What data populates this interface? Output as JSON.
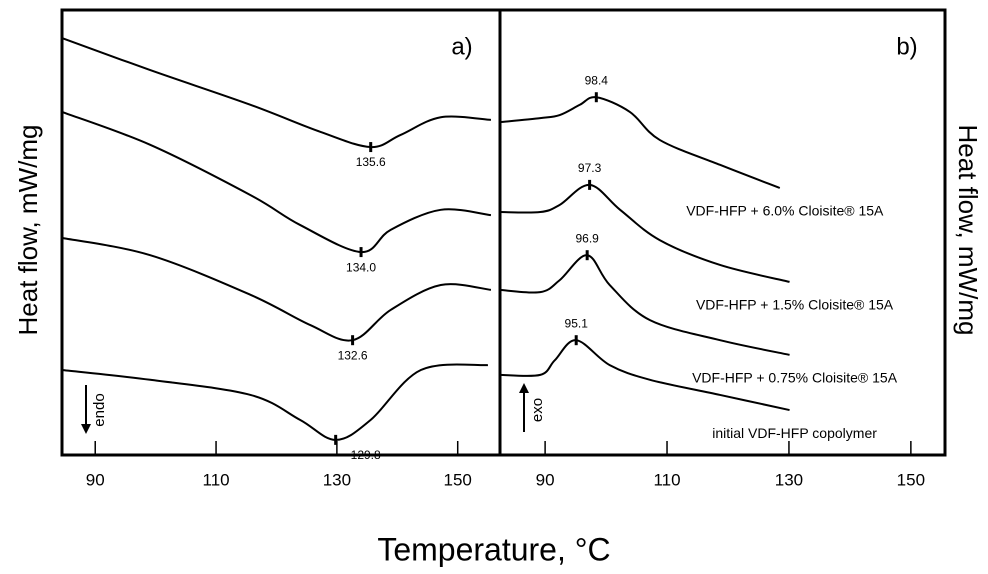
{
  "chart_data": [
    {
      "type": "line",
      "title": "a)",
      "ylabel": "Heat flow, mW/mg",
      "xlabel": "Temperature, °C",
      "annotation": "endo",
      "xlim": [
        84.5,
        157
      ],
      "xticks": [
        90,
        110,
        130,
        150
      ],
      "ylim": [
        0,
        100
      ],
      "peak_label_side": "below",
      "series": [
        {
          "color": "#000000",
          "peak": 135.6,
          "x": [
            84.5,
            99.1,
            115.7,
            127.3,
            135.6,
            140.5,
            147.2,
            155.5
          ],
          "values": [
            93.7,
            86.5,
            78.7,
            72.6,
            69.2,
            71.9,
            75.9,
            75.3
          ]
        },
        {
          "color": "#000000",
          "peak": 134.0,
          "peak_label": "134.0",
          "x": [
            84.5,
            99.1,
            115.7,
            123.9,
            134.0,
            138.9,
            147.2,
            155.5
          ],
          "values": [
            77.1,
            69.7,
            58.4,
            51.7,
            45.6,
            50.6,
            55.1,
            53.9
          ]
        },
        {
          "color": "#000000",
          "peak": 132.6,
          "x": [
            84.5,
            99.1,
            115.7,
            125.6,
            132.6,
            138.9,
            147.2,
            155.5
          ],
          "values": [
            48.8,
            44.9,
            36.0,
            29.2,
            25.8,
            32.6,
            38.2,
            37.1
          ]
        },
        {
          "color": "#000000",
          "peak": 129.8,
          "x": [
            84.5,
            99.1,
            115.7,
            123.9,
            129.8,
            135.6,
            143.9,
            155.0
          ],
          "values": [
            19.1,
            16.9,
            13.5,
            7.9,
            3.4,
            7.9,
            19.1,
            20.2
          ]
        }
      ]
    },
    {
      "type": "line",
      "title": "b)",
      "ylabel": "Heat flow, mW/mg",
      "annotation": "exo",
      "xlim": [
        82.6,
        155.6
      ],
      "xticks": [
        90,
        110,
        130,
        150
      ],
      "ylim": [
        0,
        100
      ],
      "peak_label_side": "above",
      "series": [
        {
          "name": "VDF-HFP + 6.0% Cloisite® 15A",
          "color": "#000000",
          "peak": 98.4,
          "x": [
            82.6,
            89.2,
            92.4,
            95.7,
            98.4,
            103.9,
            108.8,
            118.7,
            128.5
          ],
          "values": [
            74.8,
            75.7,
            76.4,
            78.7,
            80.4,
            77.1,
            70.8,
            65.2,
            60.0
          ]
        },
        {
          "name": "VDF-HFP + 1.5% Cloisite® 15A",
          "color": "#000000",
          "peak": 97.3,
          "x": [
            82.6,
            89.2,
            92.4,
            97.3,
            102.3,
            108.8,
            118.7,
            130.1
          ],
          "values": [
            54.6,
            54.6,
            56.2,
            60.7,
            55.1,
            48.3,
            42.7,
            38.9
          ]
        },
        {
          "name": "VDF-HFP + 0.75% Cloisite® 15A",
          "color": "#000000",
          "peak": 96.9,
          "x": [
            82.6,
            89.2,
            92.4,
            96.9,
            100.6,
            107.2,
            118.7,
            130.1
          ],
          "values": [
            37.1,
            36.6,
            39.3,
            44.9,
            38.2,
            30.3,
            25.8,
            22.5
          ]
        },
        {
          "name": "initial VDF-HFP copolymer",
          "color": "#000000",
          "peak": 95.1,
          "x": [
            82.6,
            89.2,
            91.6,
            95.1,
            100.6,
            107.2,
            118.7,
            130.1
          ],
          "values": [
            18.0,
            18.0,
            21.3,
            25.8,
            20.2,
            16.9,
            13.5,
            10.1
          ]
        }
      ]
    }
  ]
}
